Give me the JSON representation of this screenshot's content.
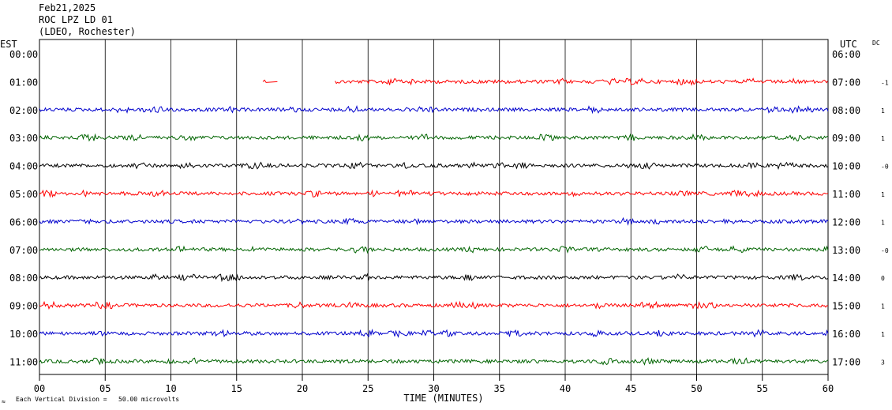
{
  "header": {
    "date": "Feb21,2025",
    "station": "ROC LPZ LD 01",
    "network": "(LDEO, Rochester)"
  },
  "labels": {
    "left_axis": "EST",
    "right_axis": "UTC",
    "dc_column": "DC",
    "footer_symbol": "≈",
    "footer_note": "Each Vertical Division =   50.00 microvolts"
  },
  "colors": {
    "trace_cycle": [
      "#ff0000",
      "#0000cc",
      "#006400",
      "#000000"
    ],
    "grid": "#000000"
  },
  "chart_data": {
    "type": "line",
    "xlabel": "TIME (MINUTES)",
    "xlim": [
      0,
      60
    ],
    "x_ticks": [
      "00",
      "05",
      "10",
      "15",
      "20",
      "25",
      "30",
      "35",
      "40",
      "45",
      "50",
      "55",
      "60"
    ],
    "est_hours": [
      "00:00",
      "01:00",
      "02:00",
      "03:00",
      "04:00",
      "05:00",
      "06:00",
      "07:00",
      "08:00",
      "09:00",
      "10:00",
      "11:00"
    ],
    "utc_hours": [
      "06:00",
      "07:00",
      "08:00",
      "09:00",
      "10:00",
      "11:00",
      "12:00",
      "13:00",
      "14:00",
      "15:00",
      "16:00",
      "17:00"
    ],
    "dc_offsets": [
      "",
      "-1",
      "1",
      "1",
      "-0",
      "1",
      "1",
      "-0",
      "0",
      "1",
      "1",
      "3"
    ],
    "traces": [
      {
        "row": 0,
        "color": "#ff0000",
        "segments": []
      },
      {
        "row": 1,
        "color": "#ff0000",
        "segments": [
          [
            17.0,
            18.1
          ],
          [
            22.5,
            60
          ]
        ]
      },
      {
        "row": 2,
        "color": "#0000cc",
        "segments": [
          [
            0,
            60
          ]
        ]
      },
      {
        "row": 3,
        "color": "#006400",
        "segments": [
          [
            0,
            60
          ]
        ]
      },
      {
        "row": 4,
        "color": "#000000",
        "segments": [
          [
            0,
            60
          ]
        ]
      },
      {
        "row": 5,
        "color": "#ff0000",
        "segments": [
          [
            0,
            60
          ]
        ]
      },
      {
        "row": 6,
        "color": "#0000cc",
        "segments": [
          [
            0,
            60
          ]
        ]
      },
      {
        "row": 7,
        "color": "#006400",
        "segments": [
          [
            0,
            60
          ]
        ]
      },
      {
        "row": 8,
        "color": "#000000",
        "segments": [
          [
            0,
            60
          ]
        ]
      },
      {
        "row": 9,
        "color": "#ff0000",
        "segments": [
          [
            0,
            60
          ]
        ]
      },
      {
        "row": 10,
        "color": "#0000cc",
        "segments": [
          [
            0,
            60
          ]
        ]
      },
      {
        "row": 11,
        "color": "#006400",
        "segments": [
          [
            0,
            60
          ]
        ]
      }
    ]
  }
}
